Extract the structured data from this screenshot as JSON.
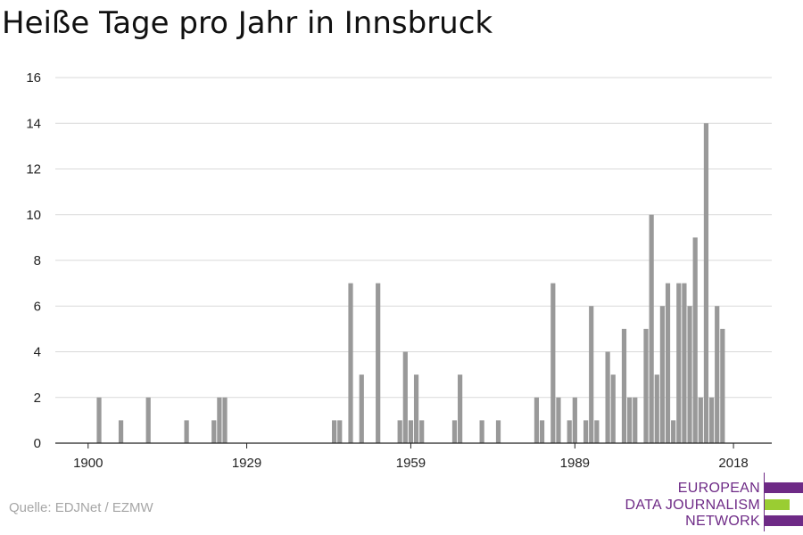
{
  "chart_data": {
    "type": "bar",
    "title": "Heiße Tage pro Jahr in Innsbruck",
    "xlabel": "",
    "ylabel": "",
    "xlim": [
      1894,
      2025
    ],
    "ylim": [
      0,
      16
    ],
    "yticks": [
      0,
      2,
      4,
      6,
      8,
      10,
      12,
      14,
      16
    ],
    "xticks": [
      1900,
      1929,
      1959,
      1989,
      2018
    ],
    "grid": true,
    "bar_color": "#999999",
    "x": [
      1902,
      1906,
      1911,
      1918,
      1923,
      1924,
      1925,
      1945,
      1946,
      1948,
      1950,
      1953,
      1957,
      1958,
      1959,
      1960,
      1961,
      1967,
      1968,
      1972,
      1975,
      1982,
      1983,
      1985,
      1986,
      1988,
      1989,
      1991,
      1992,
      1993,
      1995,
      1996,
      1998,
      1999,
      2000,
      2002,
      2003,
      2004,
      2005,
      2006,
      2007,
      2008,
      2009,
      2010,
      2011,
      2012,
      2013,
      2014,
      2015,
      2016,
      2017
    ],
    "values": [
      2,
      1,
      2,
      1,
      1,
      2,
      2,
      1,
      1,
      7,
      3,
      7,
      1,
      4,
      1,
      3,
      1,
      1,
      3,
      1,
      1,
      2,
      1,
      7,
      2,
      1,
      2,
      1,
      6,
      1,
      4,
      3,
      5,
      2,
      2,
      5,
      10,
      3,
      6,
      7,
      1,
      7,
      7,
      6,
      9,
      2,
      14,
      2,
      6,
      5,
      0
    ]
  },
  "source": "Quelle: EDJNet / EZMW",
  "logo": {
    "lines": [
      "EUROPEAN",
      "DATA JOURNALISM",
      "NETWORK"
    ],
    "colors": [
      "#6e2a86",
      "#9acd32",
      "#6e2a86"
    ]
  }
}
